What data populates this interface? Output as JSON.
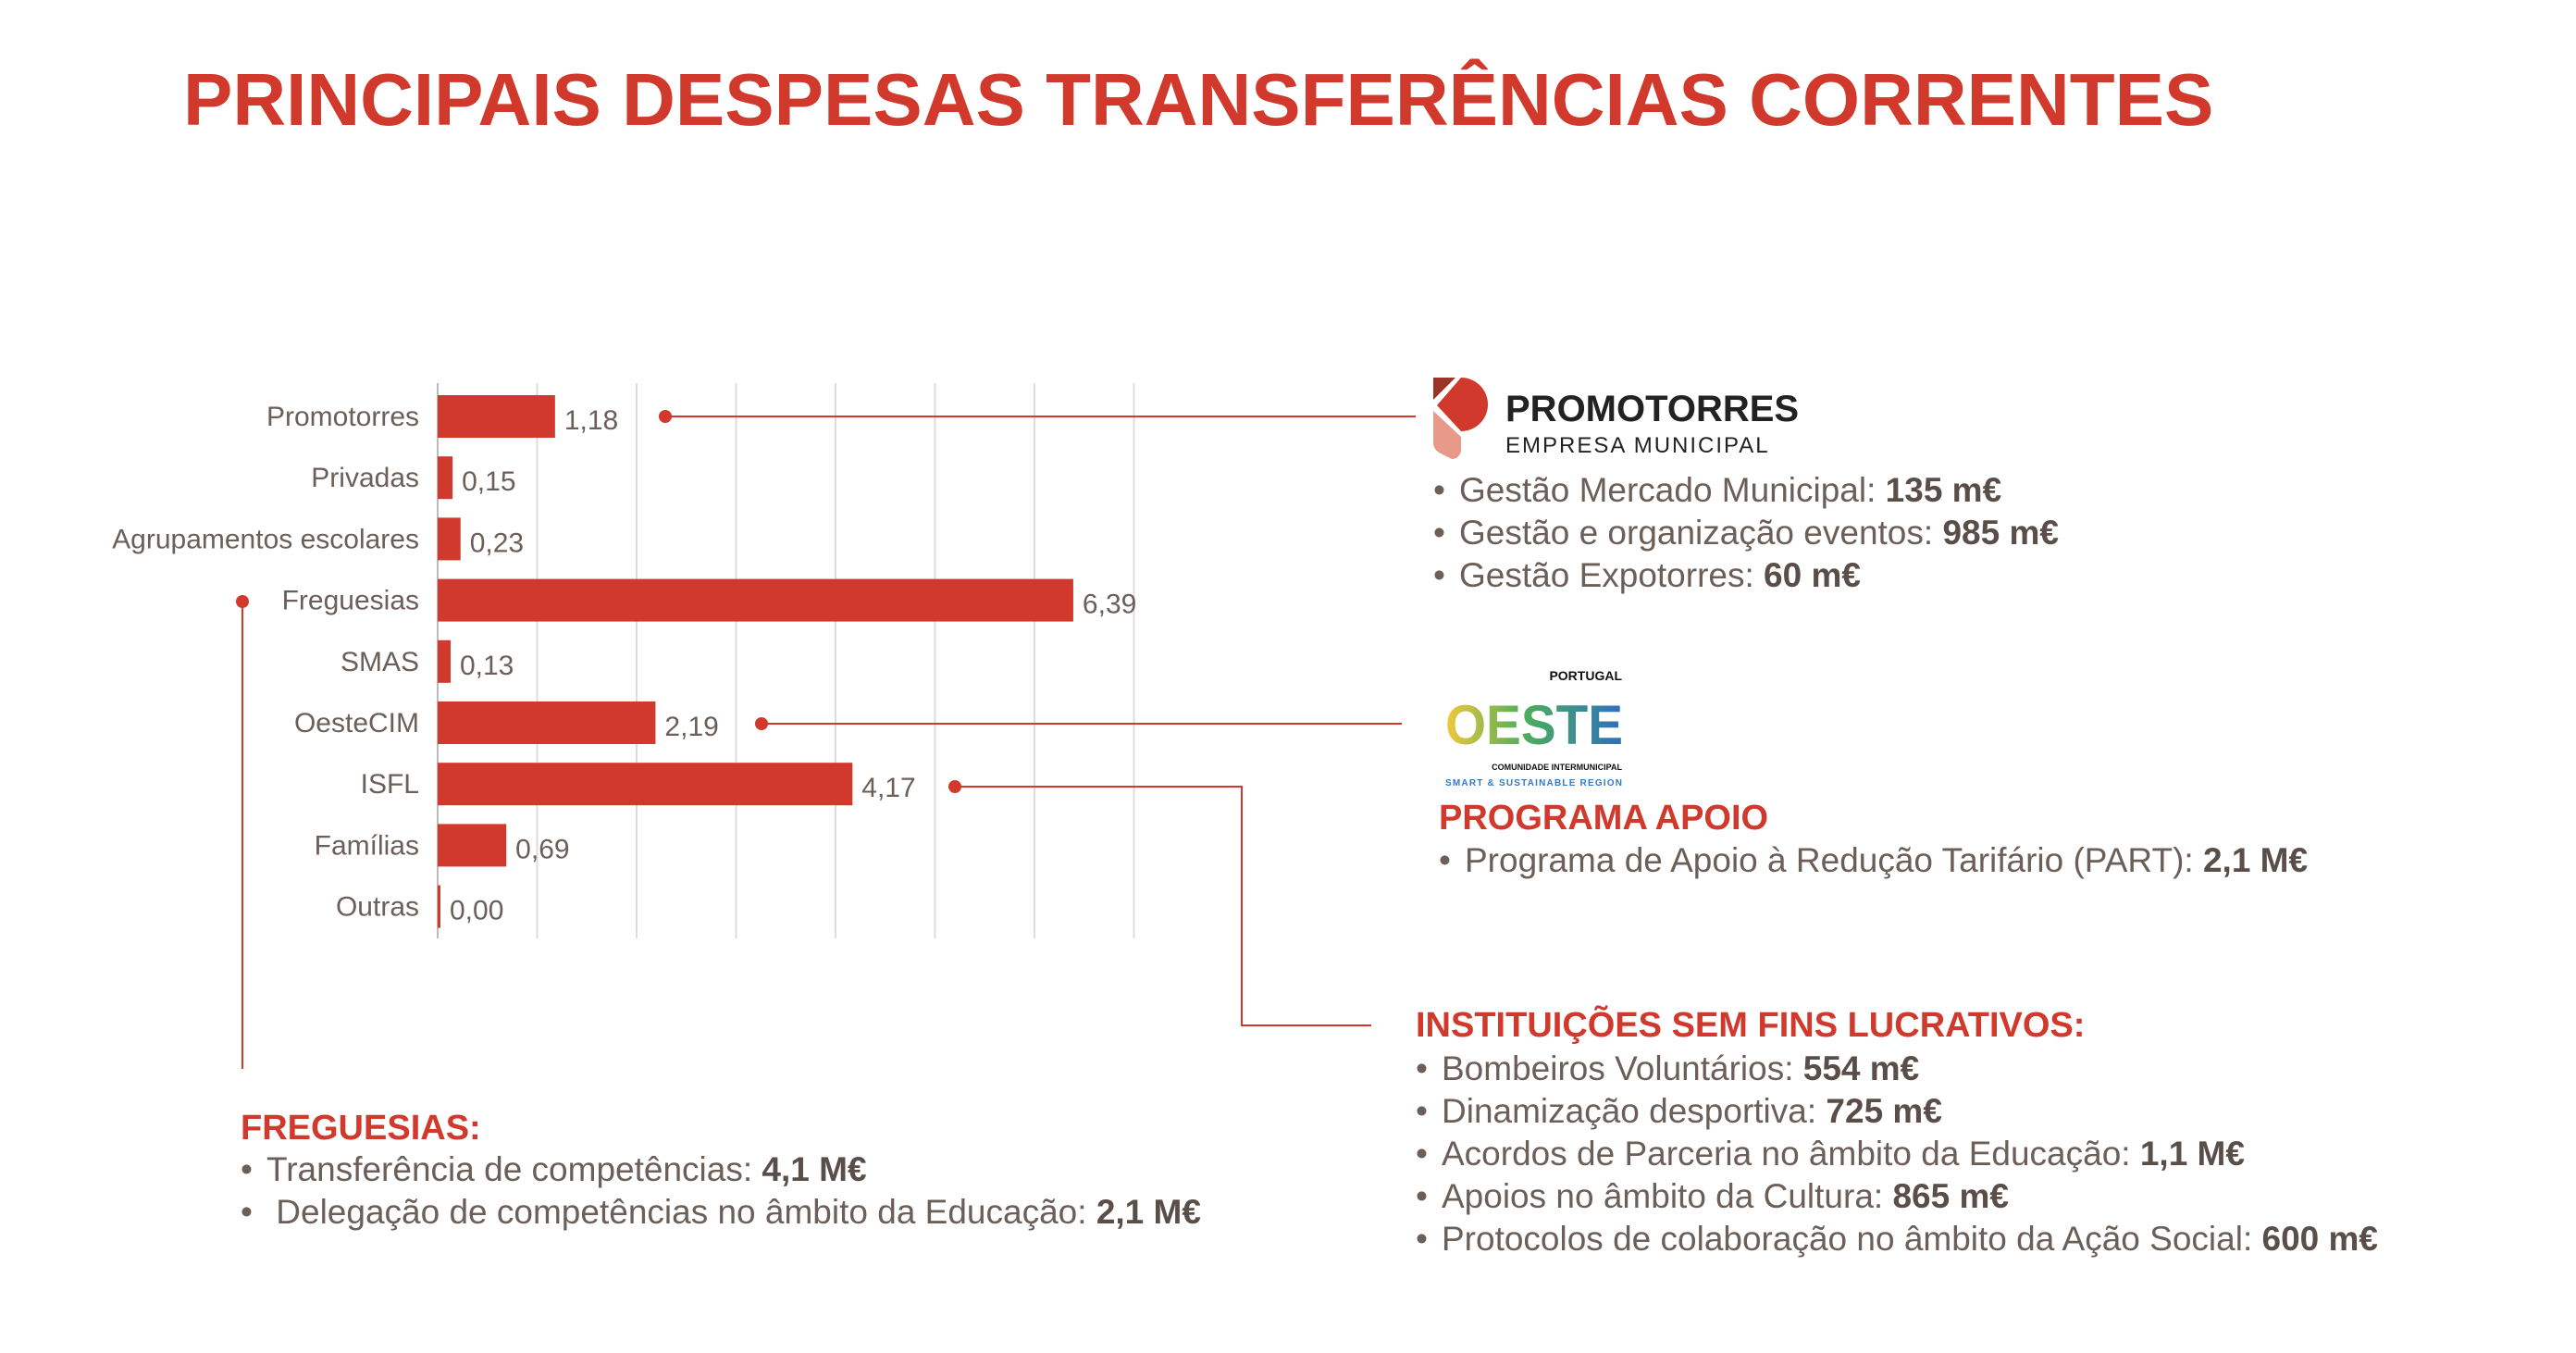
{
  "title": {
    "part1": "PRINCIPAIS DESPESAS ",
    "part2": "TRANSFERÊNCIAS CORRENTES"
  },
  "colors": {
    "accent": "#d0392b",
    "text": "#6b5f58",
    "grid": "#dddddd"
  },
  "chart_data": {
    "type": "bar",
    "orientation": "horizontal",
    "categories": [
      "Promotorres",
      "Privadas",
      "Agrupamentos escolares",
      "Freguesias",
      "SMAS",
      "OesteCIM",
      "ISFL",
      "Famílias",
      "Outras"
    ],
    "values": [
      1.18,
      0.15,
      0.23,
      6.39,
      0.13,
      2.19,
      4.17,
      0.69,
      0.0
    ],
    "value_labels": [
      "1,18",
      "0,15",
      "0,23",
      "6,39",
      "0,13",
      "2,19",
      "4,17",
      "0,69",
      "0,00"
    ],
    "xlim": [
      0,
      7
    ],
    "grid": true,
    "bar_color": "#d0392b"
  },
  "promotorres": {
    "logo": {
      "name": "PROMOTORRES",
      "subtitle": "EMPRESA MUNICIPAL"
    },
    "items": [
      {
        "label": "Gestão Mercado Municipal: ",
        "value": "135 m€"
      },
      {
        "label": "Gestão e organização eventos: ",
        "value": "985 m€"
      },
      {
        "label": "Gestão Expotorres: ",
        "value": "60 m€"
      }
    ]
  },
  "oeste": {
    "logo": {
      "top": "PORTUGAL",
      "name": "OESTE",
      "line1": "COMUNIDADE INTERMUNICIPAL",
      "line2": "SMART & SUSTAINABLE REGION"
    },
    "heading": "PROGRAMA APOIO",
    "items": [
      {
        "label": "Programa de Apoio à Redução Tarifário (PART): ",
        "value": "2,1 M€"
      }
    ]
  },
  "isfl": {
    "heading": "INSTITUIÇÕES SEM FINS LUCRATIVOS:",
    "items": [
      {
        "label": "Bombeiros Voluntários: ",
        "value": "554 m€"
      },
      {
        "label": "Dinamização desportiva: ",
        "value": "725 m€"
      },
      {
        "label": "Acordos de Parceria no âmbito da Educação: ",
        "value": "1,1 M€"
      },
      {
        "label": "Apoios no âmbito da Cultura: ",
        "value": "865 m€"
      },
      {
        "label": "Protocolos de colaboração no âmbito da Ação Social: ",
        "value": "600 m€"
      }
    ]
  },
  "freguesias": {
    "heading": "FREGUESIAS:",
    "items": [
      {
        "label": "Transferência de competências: ",
        "value": "4,1 M€"
      },
      {
        "label": " Delegação de competências no âmbito da Educação: ",
        "value": "2,1 M€"
      }
    ]
  },
  "bullet": "•"
}
